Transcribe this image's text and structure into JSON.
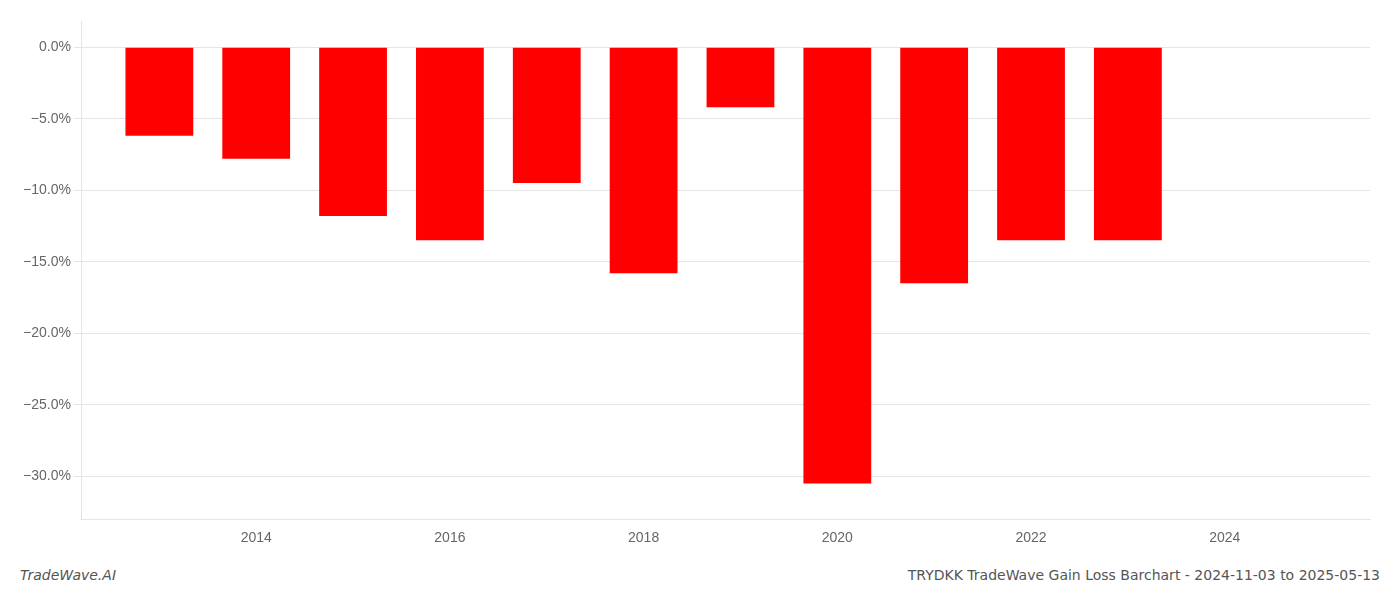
{
  "chart_data": {
    "type": "bar",
    "title": "TRYDKK TradeWave Gain Loss Barchart - 2024-11-03 to 2025-05-13",
    "annotations": [
      "TradeWave.AI"
    ],
    "x": [
      2013,
      2014,
      2015,
      2016,
      2017,
      2018,
      2019,
      2020,
      2021,
      2022,
      2023
    ],
    "values": [
      -6.2,
      -7.8,
      -11.8,
      -13.5,
      -9.5,
      -15.8,
      -4.2,
      -30.5,
      -16.5,
      -13.5,
      -13.5
    ],
    "color": "#ff0000",
    "xlim": [
      2012.2,
      2025.5
    ],
    "xticks": [
      2014,
      2016,
      2018,
      2020,
      2022,
      2024
    ],
    "ylim": [
      -33,
      1.8
    ],
    "yticks": [
      {
        "value": 0.0,
        "label": "0.0%"
      },
      {
        "value": -5.0,
        "label": "−5.0%"
      },
      {
        "value": -10.0,
        "label": "−10.0%"
      },
      {
        "value": -15.0,
        "label": "−15.0%"
      },
      {
        "value": -20.0,
        "label": "−20.0%"
      },
      {
        "value": -25.0,
        "label": "−25.0%"
      },
      {
        "value": -30.0,
        "label": "−30.0%"
      }
    ],
    "grid": true
  }
}
